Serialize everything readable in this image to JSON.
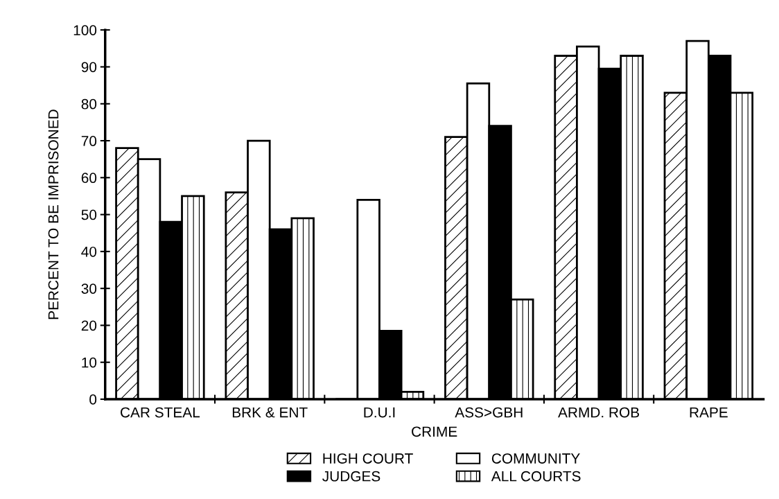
{
  "chart_data": {
    "type": "bar",
    "xlabel": "CRIME",
    "ylabel": "PERCENT TO BE IMPRISONED",
    "categories": [
      "CAR STEAL",
      "BRK & ENT",
      "D.U.I",
      "ASS>GBH",
      "ARMD. ROB",
      "RAPE"
    ],
    "series": [
      {
        "name": "HIGH COURT",
        "color": "#000000",
        "values": [
          68,
          56,
          0,
          71,
          93,
          83
        ]
      },
      {
        "name": "COMMUNITY",
        "color": "#ffffff",
        "values": [
          65,
          70,
          54,
          85.5,
          95.5,
          97
        ]
      },
      {
        "name": "JUDGES",
        "color": "#000000",
        "values": [
          48,
          46,
          18.5,
          74,
          89.5,
          93
        ]
      },
      {
        "name": "ALL COURTS",
        "color": "#000000",
        "values": [
          55,
          49,
          2,
          27,
          93,
          83
        ]
      }
    ],
    "ylim": [
      0,
      100
    ],
    "yticks": [
      0,
      10,
      20,
      30,
      40,
      50,
      60,
      70,
      80,
      90,
      100
    ],
    "grid": false,
    "legend": "bottom"
  }
}
